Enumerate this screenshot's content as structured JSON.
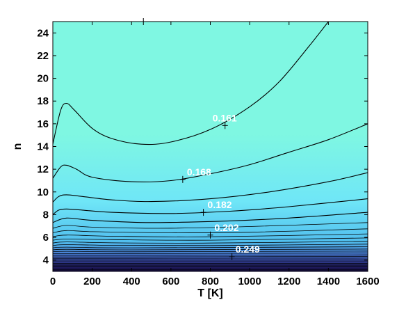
{
  "chart_data": {
    "type": "contour",
    "xlabel": "T [K]",
    "ylabel": "n",
    "xlim": [
      0,
      1600
    ],
    "ylim": [
      3,
      25
    ],
    "xticks": [
      0,
      200,
      400,
      600,
      800,
      1000,
      1200,
      1400,
      1600
    ],
    "yticks": [
      4,
      6,
      8,
      10,
      12,
      14,
      16,
      18,
      20,
      22,
      24
    ],
    "colors": {
      "top": "#7ff7e2",
      "mid": "#6fe6f7",
      "lower": "#52bfee",
      "bottom": "#3b1fb0",
      "line": "#000000",
      "label": "#ffffff"
    },
    "contour_labels": [
      {
        "text": "0.161",
        "x": 875,
        "y": 15.85
      },
      {
        "text": "0.168",
        "x": 660,
        "y": 11.1
      },
      {
        "text": "0.182",
        "x": 765,
        "y": 8.2
      },
      {
        "text": "0.202",
        "x": 800,
        "y": 6.2
      },
      {
        "text": "0.249",
        "x": 900,
        "y": 4.3
      }
    ],
    "contour_lines": [
      {
        "x": [
          0,
          40,
          70,
          110,
          200,
          300,
          450,
          600,
          800,
          1000,
          1150,
          1300,
          1400
        ],
        "y": [
          14.2,
          17.2,
          17.8,
          17.2,
          15.6,
          14.7,
          14.2,
          14.4,
          15.5,
          17.5,
          19.7,
          22.8,
          25
        ]
      },
      {
        "x": [
          0,
          40,
          70,
          120,
          200,
          400,
          600,
          800,
          1000,
          1200,
          1400,
          1600
        ],
        "y": [
          11.2,
          12.2,
          12.35,
          12.0,
          11.3,
          10.9,
          11.0,
          11.6,
          12.4,
          13.5,
          14.6,
          16.0
        ]
      },
      {
        "x": [
          0,
          30,
          70,
          150,
          300,
          500,
          800,
          1100,
          1400,
          1600
        ],
        "y": [
          9.1,
          9.6,
          9.75,
          9.6,
          9.3,
          9.15,
          9.4,
          10.0,
          10.9,
          11.7
        ]
      },
      {
        "x": [
          0,
          30,
          70,
          150,
          300,
          600,
          900,
          1200,
          1600
        ],
        "y": [
          8.0,
          8.4,
          8.5,
          8.4,
          8.2,
          8.1,
          8.3,
          8.7,
          9.4
        ]
      },
      {
        "x": [
          0,
          70,
          200,
          500,
          900,
          1200,
          1600
        ],
        "y": [
          7.3,
          7.7,
          7.5,
          7.3,
          7.45,
          7.7,
          8.2
        ]
      },
      {
        "x": [
          0,
          70,
          200,
          500,
          900,
          1600
        ],
        "y": [
          6.8,
          7.05,
          6.9,
          6.8,
          6.9,
          7.3
        ]
      },
      {
        "x": [
          0,
          70,
          200,
          600,
          1000,
          1600
        ],
        "y": [
          6.4,
          6.6,
          6.5,
          6.4,
          6.45,
          6.75
        ]
      },
      {
        "x": [
          0,
          70,
          300,
          800,
          1600
        ],
        "y": [
          6.05,
          6.2,
          6.1,
          6.05,
          6.3
        ]
      },
      {
        "x": [
          0,
          70,
          300,
          800,
          1600
        ],
        "y": [
          5.75,
          5.85,
          5.8,
          5.75,
          5.95
        ]
      },
      {
        "x": [
          0,
          70,
          300,
          800,
          1600
        ],
        "y": [
          5.5,
          5.6,
          5.52,
          5.5,
          5.65
        ]
      },
      {
        "x": [
          0,
          70,
          300,
          800,
          1600
        ],
        "y": [
          5.28,
          5.36,
          5.3,
          5.28,
          5.4
        ]
      },
      {
        "x": [
          0,
          70,
          400,
          1600
        ],
        "y": [
          5.08,
          5.14,
          5.08,
          5.17
        ]
      },
      {
        "x": [
          0,
          70,
          400,
          1600
        ],
        "y": [
          4.9,
          4.95,
          4.9,
          4.97
        ]
      },
      {
        "x": [
          0,
          70,
          400,
          1600
        ],
        "y": [
          4.73,
          4.77,
          4.73,
          4.79
        ]
      },
      {
        "x": [
          0,
          400,
          1600
        ],
        "y": [
          4.57,
          4.57,
          4.62
        ]
      },
      {
        "x": [
          0,
          400,
          1600
        ],
        "y": [
          4.42,
          4.42,
          4.46
        ]
      },
      {
        "x": [
          0,
          400,
          1600
        ],
        "y": [
          4.28,
          4.28,
          4.31
        ]
      },
      {
        "x": [
          0,
          1600
        ],
        "y": [
          4.15,
          4.17
        ]
      },
      {
        "x": [
          0,
          1600
        ],
        "y": [
          4.03,
          4.04
        ]
      },
      {
        "x": [
          0,
          1600
        ],
        "y": [
          3.92,
          3.92
        ]
      },
      {
        "x": [
          0,
          1600
        ],
        "y": [
          3.82,
          3.82
        ]
      },
      {
        "x": [
          0,
          1600
        ],
        "y": [
          3.72,
          3.72
        ]
      },
      {
        "x": [
          0,
          1600
        ],
        "y": [
          3.63,
          3.63
        ]
      },
      {
        "x": [
          0,
          1600
        ],
        "y": [
          3.54,
          3.54
        ]
      },
      {
        "x": [
          0,
          1600
        ],
        "y": [
          3.46,
          3.46
        ]
      },
      {
        "x": [
          0,
          1600
        ],
        "y": [
          3.38,
          3.38
        ]
      },
      {
        "x": [
          0,
          1600
        ],
        "y": [
          3.3,
          3.3
        ]
      },
      {
        "x": [
          0,
          1600
        ],
        "y": [
          3.22,
          3.22
        ]
      },
      {
        "x": [
          0,
          1600
        ],
        "y": [
          3.15,
          3.15
        ]
      },
      {
        "x": [
          0,
          1600
        ],
        "y": [
          3.08,
          3.08
        ]
      }
    ],
    "label_marks": [
      {
        "x": 460,
        "y": 25
      },
      {
        "x": 875,
        "y": 15.85
      },
      {
        "x": 660,
        "y": 11.1
      },
      {
        "x": 765,
        "y": 8.2
      },
      {
        "x": 800,
        "y": 6.2
      },
      {
        "x": 910,
        "y": 4.3
      }
    ]
  }
}
